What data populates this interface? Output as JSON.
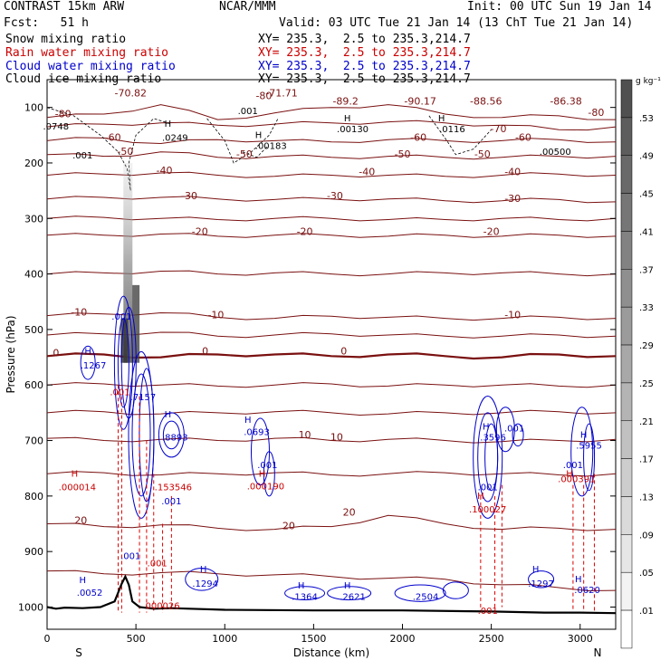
{
  "header": {
    "model": "CONTRAST 15km ARW",
    "org": "NCAR/MMM",
    "init": "Init: 00 UTC Sun 19 Jan 14",
    "fcst": "Fcst:   51 h",
    "valid": "Valid: 03 UTC Tue 21 Jan 14 (13 ChT Tue 21 Jan 14)"
  },
  "legend": {
    "items": [
      {
        "name": "Snow mixing ratio",
        "xy": "XY= 235.3,  2.5 to 235.3,214.7",
        "color": "#000000"
      },
      {
        "name": "Rain water mixing ratio",
        "xy": "XY= 235.3,  2.5 to 235.3,214.7",
        "color": "#cc0000"
      },
      {
        "name": "Cloud water mixing ratio",
        "xy": "XY= 235.3,  2.5 to 235.3,214.7",
        "color": "#0000cc"
      },
      {
        "name": "Cloud ice mixing ratio",
        "xy": "XY= 235.3,  2.5 to 235.3,214.7",
        "color": "#000000"
      }
    ]
  },
  "colorbar": {
    "unit": "g kg⁻¹",
    "labels": [
      ".53",
      ".49",
      ".45",
      ".41",
      ".37",
      ".33",
      ".29",
      ".25",
      ".21",
      ".17",
      ".13",
      ".09",
      ".05",
      ".01"
    ]
  },
  "chart_data": {
    "type": "cross-section",
    "xlabel": "Distance (km)",
    "ylabel": "Pressure (hPa)",
    "xlim": [
      0,
      3200
    ],
    "ylim": [
      1040,
      50
    ],
    "x_ticks": [
      0,
      500,
      1000,
      1500,
      2000,
      2500,
      3000
    ],
    "y_ticks": [
      100,
      200,
      300,
      400,
      500,
      600,
      700,
      800,
      900,
      1000
    ],
    "x_end_labels": {
      "left": "S",
      "right": "N"
    },
    "temperature_contours": {
      "color": "#7a1010",
      "levels": [
        -80,
        -70,
        -60,
        -50,
        -40,
        -30,
        -20,
        -10,
        0,
        10,
        20
      ],
      "labels": [
        {
          "text": "-70.82",
          "x": 470,
          "p": 80
        },
        {
          "text": "-71.71",
          "x": 1320,
          "p": 80
        },
        {
          "text": "-89.2",
          "x": 1680,
          "p": 95
        },
        {
          "text": "-90.17",
          "x": 2100,
          "p": 95
        },
        {
          "text": "-88.56",
          "x": 2470,
          "p": 95
        },
        {
          "text": "-86.38",
          "x": 2920,
          "p": 95
        },
        {
          "text": "-80",
          "x": 90,
          "p": 118
        },
        {
          "text": "-80",
          "x": 1220,
          "p": 85
        },
        {
          "text": "-80",
          "x": 3090,
          "p": 115
        },
        {
          "text": "-70",
          "x": 2540,
          "p": 145
        },
        {
          "text": "-60",
          "x": 370,
          "p": 160
        },
        {
          "text": "-60",
          "x": 2090,
          "p": 160
        },
        {
          "text": "-60",
          "x": 2680,
          "p": 160
        },
        {
          "text": "-50",
          "x": 440,
          "p": 185
        },
        {
          "text": "-50",
          "x": 1110,
          "p": 190
        },
        {
          "text": "-50",
          "x": 2000,
          "p": 190
        },
        {
          "text": "-50",
          "x": 2450,
          "p": 190
        },
        {
          "text": "-40",
          "x": 660,
          "p": 220
        },
        {
          "text": "-40",
          "x": 1800,
          "p": 222
        },
        {
          "text": "-40",
          "x": 2620,
          "p": 222
        },
        {
          "text": "-30",
          "x": 800,
          "p": 265
        },
        {
          "text": "-30",
          "x": 1620,
          "p": 265
        },
        {
          "text": "-30",
          "x": 2620,
          "p": 270
        },
        {
          "text": "-20",
          "x": 860,
          "p": 330
        },
        {
          "text": "-20",
          "x": 1450,
          "p": 330
        },
        {
          "text": "-20",
          "x": 2500,
          "p": 330
        },
        {
          "text": "-10",
          "x": 180,
          "p": 475
        },
        {
          "text": "-10",
          "x": 950,
          "p": 480
        },
        {
          "text": "-10",
          "x": 2620,
          "p": 480
        },
        {
          "text": "0",
          "x": 50,
          "p": 548
        },
        {
          "text": "0",
          "x": 890,
          "p": 545
        },
        {
          "text": "0",
          "x": 1670,
          "p": 545
        },
        {
          "text": "10",
          "x": 1450,
          "p": 696
        },
        {
          "text": "10",
          "x": 1630,
          "p": 700
        },
        {
          "text": "20",
          "x": 190,
          "p": 850
        },
        {
          "text": "20",
          "x": 1360,
          "p": 860
        },
        {
          "text": "20",
          "x": 1700,
          "p": 835
        }
      ]
    },
    "snow_annotations": [
      {
        "text": ".0748",
        "x": 50,
        "p": 140
      },
      {
        "text": "H",
        "x": 680,
        "p": 135
      },
      {
        "text": ".0249",
        "x": 720,
        "p": 160
      },
      {
        "text": "H",
        "x": 1190,
        "p": 155
      },
      {
        "text": ".00183",
        "x": 1260,
        "p": 175
      },
      {
        "text": ".001",
        "x": 1130,
        "p": 112
      },
      {
        "text": "H",
        "x": 1690,
        "p": 125
      },
      {
        "text": ".00130",
        "x": 1720,
        "p": 145
      },
      {
        "text": "H",
        "x": 2220,
        "p": 125
      },
      {
        "text": ".0116",
        "x": 2280,
        "p": 145
      },
      {
        "text": ".00500",
        "x": 2860,
        "p": 185
      },
      {
        "text": ".001",
        "x": 200,
        "p": 192
      }
    ],
    "rain_annotations": [
      {
        "text": "H",
        "x": 155,
        "p": 765
      },
      {
        "text": ".000014",
        "x": 170,
        "p": 790
      },
      {
        "text": ".001",
        "x": 410,
        "p": 618
      },
      {
        "text": ".153546",
        "x": 710,
        "p": 790
      },
      {
        "text": "H",
        "x": 1210,
        "p": 765
      },
      {
        "text": ".000190",
        "x": 1230,
        "p": 788
      },
      {
        "text": ".001",
        "x": 620,
        "p": 927
      },
      {
        "text": "000026",
        "x": 650,
        "p": 1003
      },
      {
        "text": "H",
        "x": 2440,
        "p": 805
      },
      {
        "text": ".100027",
        "x": 2480,
        "p": 830
      },
      {
        "text": ".001",
        "x": 2480,
        "p": 1012
      },
      {
        "text": "H",
        "x": 2940,
        "p": 765
      },
      {
        "text": ".000391",
        "x": 2980,
        "p": 775
      }
    ],
    "cloud_water_annotations": [
      {
        "text": ".001",
        "x": 420,
        "p": 482
      },
      {
        "text": "H",
        "x": 230,
        "p": 545
      },
      {
        "text": ".1267",
        "x": 260,
        "p": 570
      },
      {
        "text": ".7157",
        "x": 540,
        "p": 627
      },
      {
        "text": "H",
        "x": 680,
        "p": 658
      },
      {
        "text": ".8893",
        "x": 720,
        "p": 700
      },
      {
        "text": "H",
        "x": 1130,
        "p": 668
      },
      {
        "text": ".0693",
        "x": 1180,
        "p": 690
      },
      {
        "text": ".001",
        "x": 1240,
        "p": 750
      },
      {
        "text": ".001",
        "x": 700,
        "p": 815
      },
      {
        "text": ".001",
        "x": 470,
        "p": 914
      },
      {
        "text": "H",
        "x": 200,
        "p": 957
      },
      {
        "text": ".0052",
        "x": 240,
        "p": 980
      },
      {
        "text": "H",
        "x": 880,
        "p": 937
      },
      {
        "text": ".1294",
        "x": 890,
        "p": 963
      },
      {
        "text": "H",
        "x": 1430,
        "p": 967
      },
      {
        "text": ".1364",
        "x": 1450,
        "p": 987
      },
      {
        "text": "H",
        "x": 1690,
        "p": 967
      },
      {
        "text": ".2621",
        "x": 1720,
        "p": 987
      },
      {
        "text": ".2504",
        "x": 2130,
        "p": 987
      },
      {
        "text": "H",
        "x": 2470,
        "p": 680
      },
      {
        "text": ".3596",
        "x": 2510,
        "p": 700
      },
      {
        "text": ".001",
        "x": 2630,
        "p": 684
      },
      {
        "text": ".001",
        "x": 2480,
        "p": 790
      },
      {
        "text": "H",
        "x": 3020,
        "p": 695
      },
      {
        "text": ".5955",
        "x": 3050,
        "p": 715
      },
      {
        "text": ".001",
        "x": 2960,
        "p": 750
      },
      {
        "text": "H",
        "x": 2750,
        "p": 937
      },
      {
        "text": ".1297",
        "x": 2780,
        "p": 963
      },
      {
        "text": "H",
        "x": 2990,
        "p": 955
      },
      {
        "text": ".0620",
        "x": 3040,
        "p": 975
      }
    ],
    "terrain": {
      "x": [
        0,
        50,
        100,
        200,
        300,
        380,
        420,
        440,
        460,
        480,
        520,
        600,
        700,
        800,
        1000,
        1500,
        2000,
        2500,
        2800,
        3000,
        3200
      ],
      "p": [
        1000,
        1003,
        1001,
        1002,
        1000,
        990,
        958,
        945,
        960,
        990,
        1000,
        1003,
        1002,
        1003,
        1005,
        1006,
        1006,
        1008,
        1010,
        1010,
        1011
      ]
    }
  }
}
